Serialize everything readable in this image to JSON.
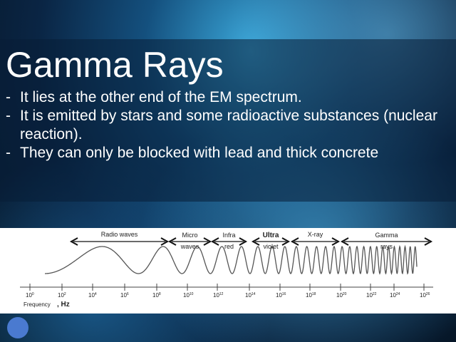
{
  "slide": {
    "title": "Gamma Rays",
    "bullets": [
      "It lies at the other end of the EM spectrum.",
      "It is emitted by stars and some radioactive substances (nuclear reaction).",
      "They can only be blocked with lead and thick concrete"
    ]
  },
  "diagram": {
    "bands": [
      {
        "l1": "Radio waves",
        "l2": ""
      },
      {
        "l1": "Micro",
        "l2": "waves"
      },
      {
        "l1": "Infra",
        "l2": "red"
      },
      {
        "l1": "Ultra",
        "l2": "violet"
      },
      {
        "l1": "X-ray",
        "l2": ""
      },
      {
        "l1": "Gamma",
        "l2": "rays"
      }
    ],
    "ticks": [
      "0",
      "2",
      "4",
      "6",
      "8",
      "10",
      "12",
      "14",
      "16",
      "18",
      "20",
      "22",
      "24",
      "26"
    ],
    "axis_label": "Frequency",
    "unit": ", Hz"
  },
  "colors": {
    "accent_circle": "#4a7ad0"
  }
}
